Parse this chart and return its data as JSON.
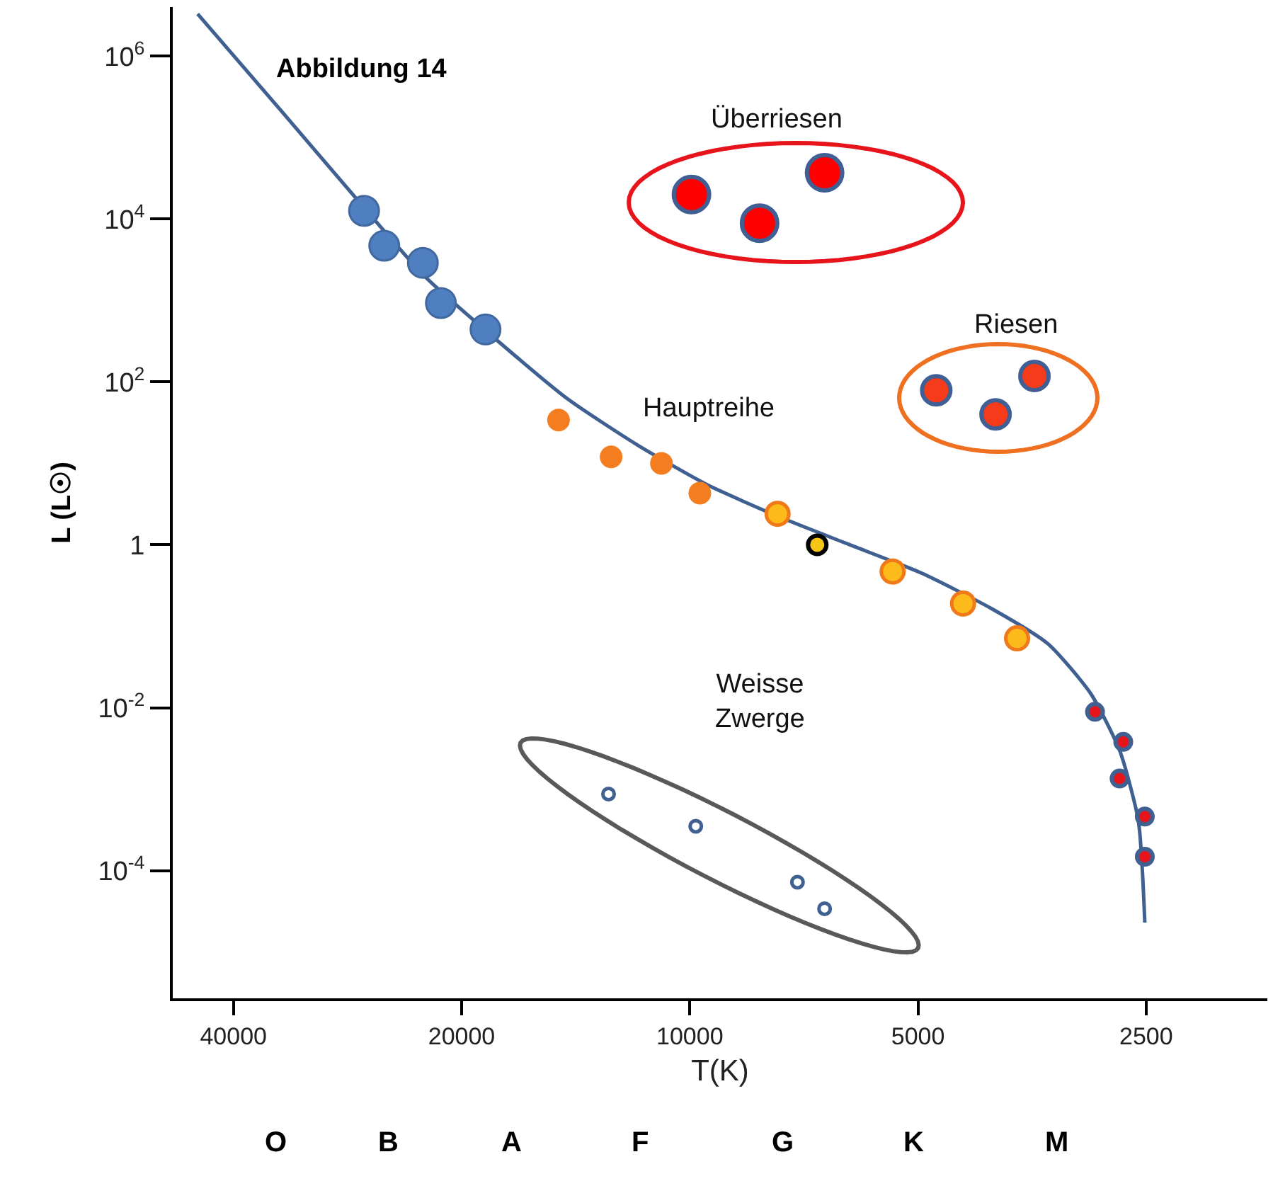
{
  "chart_data": {
    "type": "scatter",
    "title": "Abbildung 14",
    "xlabel": "T(K)",
    "ylabel": "L (L☉)",
    "log": "xy",
    "grid": false,
    "marker": "circle",
    "xlim": [
      48100,
      1730
    ],
    "xticks": [
      40000,
      20000,
      10000,
      5000,
      2500
    ],
    "ylim": [
      2.7e-06,
      4000000.0
    ],
    "yticks": [
      {
        "value": 1000000,
        "label": "10$^{6}$"
      },
      {
        "value": 10000,
        "label": "10$^{4}$"
      },
      {
        "value": 100,
        "label": "10$^{2}$"
      },
      1,
      {
        "value": 0.01,
        "label": "10$^{-2}$"
      },
      {
        "value": 0.0001,
        "label": "10$^{-4}$"
      }
    ],
    "series": [
      {
        "type": "line",
        "color": "#3f6090",
        "line_style": "solid",
        "marker": "none",
        "x": [
          44600,
          34400,
          26900,
          22400,
          18000,
          14500,
          11700,
          9460,
          7620,
          6150,
          4950,
          4000,
          3370,
          2960,
          2710,
          2560,
          2510
        ],
        "values": [
          3300000,
          200000,
          13800,
          2000,
          330,
          62,
          16.6,
          5.4,
          2.2,
          1.0,
          0.45,
          0.165,
          0.061,
          0.015,
          0.003,
          0.00041,
          2.3e-05
        ]
      },
      {
        "color": "#4f7fc0",
        "x": [
          26900,
          25300,
          22500,
          21300,
          18600
        ],
        "values": [
          12600,
          4700,
          2900,
          930,
          440
        ]
      },
      {
        "color": "#f47d20",
        "x": [
          14900,
          12700,
          10900,
          9700
        ],
        "values": [
          34,
          12,
          10,
          4.3
        ]
      },
      {
        "color": "#fcbb1a",
        "x": [
          7660,
          5400,
          4360,
          3700
        ],
        "values": [
          2.4,
          0.47,
          0.19,
          0.071
        ]
      },
      {
        "color": "#f5c518",
        "x": [
          6790
        ],
        "values": [
          1
        ]
      },
      {
        "color": "#e8141c",
        "x": [
          2920,
          2680,
          2710,
          2510,
          2510
        ],
        "values": [
          0.0089,
          0.0038,
          0.00135,
          0.00046,
          0.000148
        ]
      },
      {
        "color": "#ff0000",
        "x": [
          9950,
          8090,
          6640
        ],
        "values": [
          20000,
          8900,
          37000
        ]
      },
      {
        "color": "#f53b1a",
        "x": [
          4730,
          3950,
          3510
        ],
        "values": [
          79,
          40,
          118
        ]
      },
      {
        "color": "#ffffff",
        "x": [
          12800,
          9820,
          7210,
          6640
        ],
        "values": [
          0.00087,
          0.00035,
          7.2e-05,
          3.4e-05
        ]
      }
    ],
    "annotations": [
      "Überriesen",
      "Riesen",
      "Hauptreihe",
      "Weisse\nZwerge",
      "O",
      "B",
      "A",
      "F",
      "G",
      "K",
      "M"
    ]
  }
}
